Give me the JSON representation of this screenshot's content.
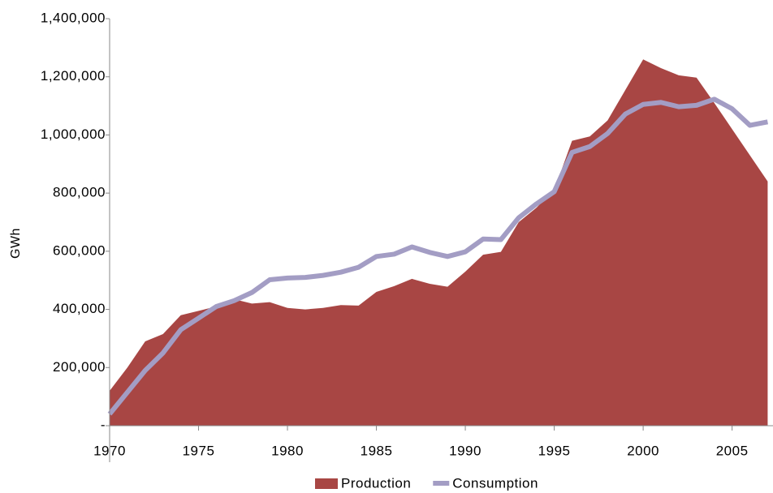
{
  "chart_data": {
    "type": "area-line",
    "y_label": "GWh",
    "x": [
      1970,
      1971,
      1972,
      1973,
      1974,
      1975,
      1976,
      1977,
      1978,
      1979,
      1980,
      1981,
      1982,
      1983,
      1984,
      1985,
      1986,
      1987,
      1988,
      1989,
      1990,
      1991,
      1992,
      1993,
      1994,
      1995,
      1996,
      1997,
      1998,
      1999,
      2000,
      2001,
      2002,
      2003,
      2004,
      2005,
      2006,
      2007
    ],
    "series": [
      {
        "name": "Production",
        "color": "#a84644",
        "kind": "area",
        "values": [
          120000,
          200000,
          290000,
          315000,
          380000,
          395000,
          410000,
          435000,
          420000,
          425000,
          405000,
          400000,
          405000,
          415000,
          413000,
          460000,
          480000,
          505000,
          488000,
          478000,
          530000,
          588000,
          598000,
          700000,
          750000,
          810000,
          980000,
          995000,
          1050000,
          1155000,
          1260000,
          1230000,
          1205000,
          1197000,
          1110000,
          1020000,
          930000,
          840000
        ]
      },
      {
        "name": "Consumption",
        "color": "#a39dc4",
        "kind": "line",
        "values": [
          40000,
          115000,
          190000,
          250000,
          330000,
          370000,
          410000,
          430000,
          458000,
          502000,
          508000,
          510000,
          517000,
          528000,
          545000,
          582000,
          590000,
          615000,
          596000,
          582000,
          598000,
          642000,
          640000,
          715000,
          763000,
          805000,
          940000,
          960000,
          1005000,
          1072000,
          1105000,
          1112000,
          1097000,
          1102000,
          1123000,
          1090000,
          1033000,
          1045000
        ]
      }
    ],
    "xlim": [
      1970,
      2007.3
    ],
    "xticks": [
      1970,
      1975,
      1980,
      1985,
      1990,
      1995,
      2000,
      2005
    ],
    "ylim": [
      0,
      1400000
    ],
    "yticks": [
      {
        "value": 0,
        "label": "-"
      },
      {
        "value": 200000,
        "label": "200,000"
      },
      {
        "value": 400000,
        "label": "400,000"
      },
      {
        "value": 600000,
        "label": "600,000"
      },
      {
        "value": 800000,
        "label": "800,000"
      },
      {
        "value": 1000000,
        "label": "1,000,000"
      },
      {
        "value": 1200000,
        "label": "1,200,000"
      },
      {
        "value": 1400000,
        "label": "1,400,000"
      }
    ],
    "grid": false,
    "legend": "bottom"
  }
}
